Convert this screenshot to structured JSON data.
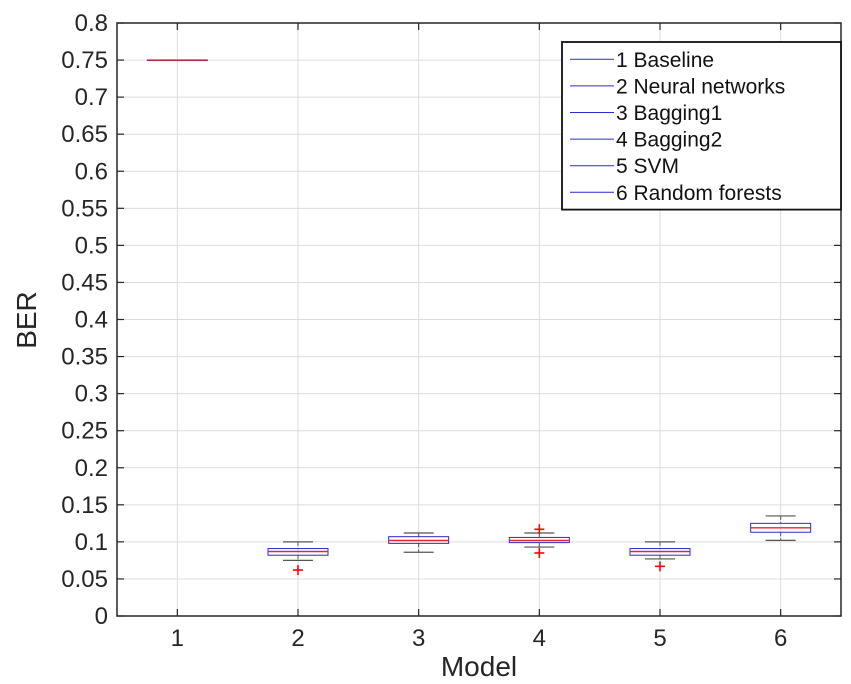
{
  "chart_data": {
    "type": "box",
    "xlabel": "Model",
    "ylabel": "BER",
    "categories": [
      "1",
      "2",
      "3",
      "4",
      "5",
      "6"
    ],
    "ylim": [
      0,
      0.8
    ],
    "yticks": [
      "0",
      "0.05",
      "0.1",
      "0.15",
      "0.2",
      "0.25",
      "0.3",
      "0.35",
      "0.4",
      "0.45",
      "0.5",
      "0.55",
      "0.6",
      "0.65",
      "0.7",
      "0.75",
      "0.8"
    ],
    "grid": true,
    "legend": {
      "placement": "top-right",
      "entries": [
        "1 Baseline",
        "2 Neural networks",
        "3 Bagging1",
        "4 Bagging2",
        "5 SVM",
        "6 Random forests"
      ]
    },
    "boxes": [
      {
        "model": "1",
        "whisker_low": 0.75,
        "q1": 0.75,
        "median": 0.75,
        "q3": 0.75,
        "whisker_high": 0.75,
        "outliers": []
      },
      {
        "model": "2",
        "whisker_low": 0.075,
        "q1": 0.082,
        "median": 0.087,
        "q3": 0.091,
        "whisker_high": 0.1,
        "outliers": [
          0.062
        ]
      },
      {
        "model": "3",
        "whisker_low": 0.086,
        "q1": 0.098,
        "median": 0.102,
        "q3": 0.107,
        "whisker_high": 0.112,
        "outliers": []
      },
      {
        "model": "4",
        "whisker_low": 0.093,
        "q1": 0.099,
        "median": 0.102,
        "q3": 0.106,
        "whisker_high": 0.112,
        "outliers": [
          0.085,
          0.117
        ]
      },
      {
        "model": "5",
        "whisker_low": 0.077,
        "q1": 0.082,
        "median": 0.087,
        "q3": 0.091,
        "whisker_high": 0.1,
        "outliers": [
          0.067
        ]
      },
      {
        "model": "6",
        "whisker_low": 0.102,
        "q1": 0.113,
        "median": 0.119,
        "q3": 0.125,
        "whisker_high": 0.135,
        "outliers": []
      }
    ],
    "colors": {
      "box": "#2a2ad0",
      "median": "#e8242c",
      "whisker": "#555555",
      "outlier": "#ff0000",
      "grid": "#dcdcdc",
      "axis": "#262626"
    }
  }
}
